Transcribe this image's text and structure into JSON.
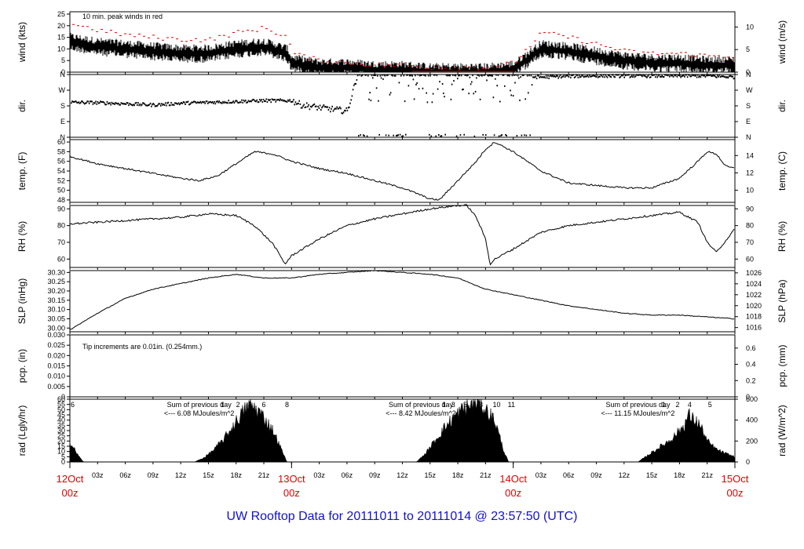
{
  "title": "UW Rooftop Data for 20111011  to  20111014 @ 23:57:50  (UTC)",
  "annotations": {
    "wind_note": "10 min. peak winds in red",
    "pcp_note": "Tip increments are 0.01in. (0.254mm.)",
    "rad_sum_label": "Sum of previous day",
    "rad_day1": "<--- 6.08 MJoules/m^2",
    "rad_day2": "<--- 8.42 MJoules/m^2",
    "rad_day3": "<--- 11.15 MJoules/m^2"
  },
  "colors": {
    "axis": "#000000",
    "peak": "#e00000",
    "day_label": "#e00000",
    "rad_text": "#9900cc",
    "note": "#0000cc"
  },
  "chart_data": {
    "type": "line",
    "x_axis": {
      "hour_ticks": [
        "03z",
        "06z",
        "09z",
        "12z",
        "15z",
        "18z",
        "21z",
        "03z",
        "06z",
        "09z",
        "12z",
        "15z",
        "18z",
        "21z",
        "03z",
        "06z",
        "09z",
        "12z",
        "15z",
        "18z",
        "21z"
      ],
      "day_ticks": [
        {
          "date": "12Oct",
          "time": "00z"
        },
        {
          "date": "13Oct",
          "time": "00z"
        },
        {
          "date": "14Oct",
          "time": "00z"
        },
        {
          "date": "15Oct",
          "time": "00z"
        }
      ]
    },
    "panels": [
      {
        "name": "wind",
        "ylabel_left": "wind (kts)",
        "ylabel_right": "wind (m/s)",
        "yticks_left": [
          "0",
          "5",
          "10",
          "15",
          "20",
          "25"
        ],
        "yticks_right": [
          "0",
          "5",
          "10"
        ],
        "ylim": [
          0,
          26
        ],
        "series": [
          {
            "x": [
              0,
              3,
              6,
              9,
              12,
              15,
              18,
              21,
              23.5,
              24,
              27,
              30,
              33,
              36,
              39,
              42,
              45,
              48,
              51,
              54,
              57,
              60,
              63,
              66,
              69,
              72
            ],
            "y": [
              13,
              11,
              10,
              9,
              8,
              8,
              10,
              11,
              8,
              4,
              2,
              2,
              1,
              1,
              0,
              0,
              0,
              1,
              10,
              9,
              7,
              5,
              4,
              4,
              3,
              3
            ]
          },
          {
            "name": "10 min. peak",
            "x": [
              0,
              3,
              6,
              9,
              12,
              15,
              18,
              21,
              23.5,
              24,
              27,
              30,
              33,
              36,
              39,
              42,
              45,
              48,
              51,
              54,
              57,
              60,
              63,
              66,
              69,
              72
            ],
            "y": [
              20,
              17,
              15,
              14,
              13,
              13,
              16,
              18,
              14,
              7,
              4,
              3,
              2,
              2,
              1,
              1,
              1,
              3,
              16,
              14,
              11,
              8,
              7,
              7,
              6,
              6
            ]
          }
        ]
      },
      {
        "name": "dir",
        "ylabel_left": "dir.",
        "ylabel_right": "dir.",
        "yticks_left": [
          "N",
          "E",
          "S",
          "W",
          "N"
        ],
        "yticks_right": [
          "N",
          "E",
          "S",
          "W",
          "N"
        ],
        "ylim": [
          0,
          360
        ],
        "series": [
          {
            "x": [
              0,
              3,
              6,
              9,
              12,
              15,
              18,
              21,
              24,
              25,
              27,
              30,
              31,
              33,
              36,
              39,
              42,
              45,
              48,
              51,
              54,
              57,
              60,
              63,
              66,
              69,
              72
            ],
            "y": [
              200,
              198,
              192,
              185,
              195,
              200,
              205,
              210,
              210,
              185,
              170,
              150,
              345,
              355,
              350,
              355,
              352,
              355,
              350,
              345,
              350,
              352,
              352,
              352,
              352,
              352,
              345
            ]
          }
        ]
      },
      {
        "name": "temp",
        "ylabel_left": "temp. (F)",
        "ylabel_right": "temp. (C)",
        "yticks_left": [
          "48",
          "50",
          "52",
          "54",
          "56",
          "58",
          "60"
        ],
        "yticks_right": [
          "10",
          "12",
          "14"
        ],
        "ylim": [
          47.5,
          60.5
        ],
        "series": [
          {
            "x": [
              0,
              3,
              6,
              9,
              12,
              14,
              16,
              18,
              20,
              22,
              24,
              27,
              30,
              33,
              36,
              38,
              39,
              40,
              42,
              44,
              45,
              46,
              47,
              48,
              51,
              54,
              57,
              60,
              63,
              66,
              68,
              69,
              70,
              71,
              72
            ],
            "y": [
              57,
              55.5,
              54.5,
              53.5,
              52.5,
              52,
              53,
              55.5,
              58,
              57.5,
              56,
              54.5,
              53.5,
              52,
              50.5,
              49,
              48.2,
              48,
              52,
              56,
              58.5,
              60,
              59,
              58,
              54,
              51.5,
              51,
              50.5,
              50.5,
              52.5,
              56,
              58,
              57.5,
              55,
              54.5
            ]
          }
        ]
      },
      {
        "name": "rh",
        "ylabel_left": "RH (%)",
        "ylabel_right": "RH (%)",
        "yticks_left": [
          "60",
          "70",
          "80",
          "90"
        ],
        "yticks_right": [
          "60",
          "70",
          "80",
          "90"
        ],
        "ylim": [
          55,
          92
        ],
        "series": [
          {
            "x": [
              0,
              3,
              6,
              9,
              12,
              15,
              18,
              20,
              22,
              23.3,
              24,
              27,
              30,
              33,
              36,
              39,
              42,
              43,
              44,
              45,
              45.5,
              46,
              48,
              51,
              54,
              57,
              60,
              63,
              66,
              68,
              69,
              70,
              72
            ],
            "y": [
              81,
              82,
              83,
              84,
              85,
              87,
              86,
              80,
              69,
              57,
              62,
              72,
              80,
              84,
              87,
              90,
              92,
              92,
              85,
              72,
              57,
              60,
              66,
              76,
              80,
              82,
              84,
              86,
              88,
              82,
              70,
              64,
              78
            ]
          }
        ]
      },
      {
        "name": "slp",
        "ylabel_left": "SLP (inHg)",
        "ylabel_right": "SLP (hPa)",
        "yticks_left": [
          "30.00",
          "30.05",
          "30.10",
          "30.15",
          "30.20",
          "30.25",
          "30.30"
        ],
        "yticks_right": [
          "1016",
          "1018",
          "1020",
          "1022",
          "1024",
          "1026"
        ],
        "ylim": [
          29.98,
          30.31
        ],
        "series": [
          {
            "x": [
              0,
              3,
              6,
              9,
              12,
              15,
              18,
              21,
              24,
              27,
              30,
              33,
              36,
              39,
              42,
              45,
              48,
              51,
              54,
              57,
              60,
              63,
              66,
              69,
              72
            ],
            "y": [
              29.99,
              30.08,
              30.16,
              30.21,
              30.24,
              30.27,
              30.29,
              30.27,
              30.27,
              30.29,
              30.3,
              30.31,
              30.3,
              30.29,
              30.27,
              30.21,
              30.18,
              30.15,
              30.12,
              30.1,
              30.08,
              30.07,
              30.07,
              30.06,
              30.05
            ]
          }
        ]
      },
      {
        "name": "pcp",
        "ylabel_left": "pcp. (in)",
        "ylabel_right": "pcp. (mm)",
        "yticks_left": [
          "0",
          "0.005",
          "0.010",
          "0.015",
          "0.020",
          "0.025",
          "0.030"
        ],
        "yticks_right": [
          "0",
          "0.2",
          "0.4",
          "0.6"
        ],
        "ylim": [
          0,
          0.03
        ],
        "series": [
          {
            "x": [
              0,
              72
            ],
            "y": [
              0,
              0
            ]
          }
        ]
      },
      {
        "name": "rad",
        "ylabel_left": "rad (Lgly/hr)",
        "ylabel_right": "rad (W/m^2)",
        "yticks_left": [
          "0",
          "5",
          "10",
          "15",
          "20",
          "25",
          "30",
          "35",
          "40",
          "45",
          "50",
          "55",
          "60"
        ],
        "yticks_right": [
          "0",
          "200",
          "400",
          "600"
        ],
        "ylim": [
          0,
          60
        ],
        "type": "area",
        "series": [
          {
            "x": [
              0,
              0.5,
              1,
              1.5,
              13.5,
              14.5,
              15.5,
              16.5,
              17.5,
              18.5,
              19.5,
              20.5,
              21.2,
              22,
              23,
              23.5,
              37.5,
              38.5,
              39.5,
              40.5,
              41.5,
              42.5,
              43,
              43.5,
              44,
              44.5,
              45,
              46,
              46.5,
              47,
              47.5,
              61.5,
              62.5,
              63.5,
              64.5,
              65.5,
              66.5,
              67,
              67.5,
              68,
              68.5,
              69,
              70,
              71,
              72
            ],
            "y": [
              18,
              12,
              5,
              0,
              0,
              4,
              11,
              20,
              32,
              45,
              55,
              48,
              40,
              30,
              10,
              0,
              0,
              8,
              20,
              32,
              42,
              50,
              52,
              55,
              58,
              55,
              50,
              40,
              25,
              10,
              0,
              0,
              6,
              12,
              18,
              25,
              35,
              45,
              40,
              38,
              30,
              20,
              12,
              8,
              5
            ]
          }
        ],
        "hour_markers": [
          {
            "hour": 0.3,
            "label": "6"
          },
          {
            "hour": 16.5,
            "label": "1"
          },
          {
            "hour": 18.2,
            "label": "2"
          },
          {
            "hour": 19.5,
            "label": "4"
          },
          {
            "hour": 21.0,
            "label": "6"
          },
          {
            "hour": 23.5,
            "label": "8"
          },
          {
            "hour": 40.5,
            "label": "1"
          },
          {
            "hour": 41.5,
            "label": "3"
          },
          {
            "hour": 42.8,
            "label": "5"
          },
          {
            "hour": 44.5,
            "label": "8"
          },
          {
            "hour": 46.2,
            "label": "10"
          },
          {
            "hour": 47.8,
            "label": "11"
          },
          {
            "hour": 64.3,
            "label": "1"
          },
          {
            "hour": 65.8,
            "label": "2"
          },
          {
            "hour": 67.1,
            "label": "4"
          },
          {
            "hour": 69.3,
            "label": "5"
          }
        ]
      }
    ]
  }
}
